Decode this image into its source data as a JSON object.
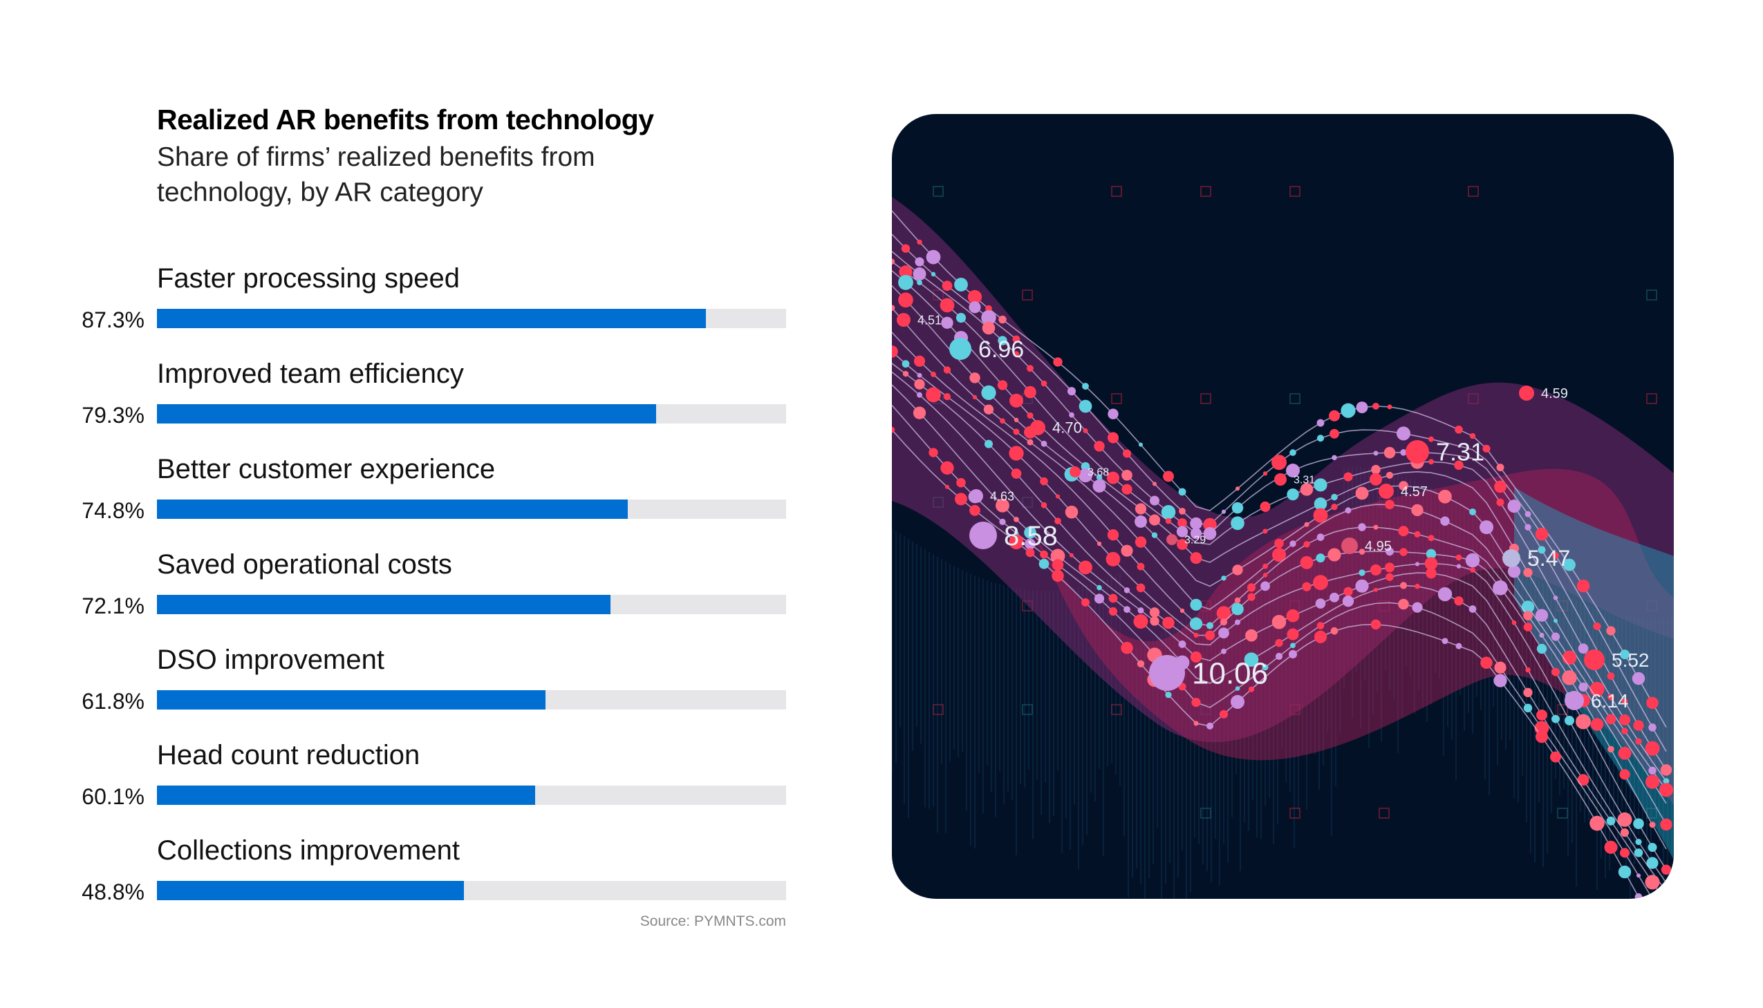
{
  "chart_data": {
    "type": "bar",
    "orientation": "horizontal",
    "title": "Realized AR benefits from technology",
    "subtitle": "Share of firms’ realized benefits from technology, by AR category",
    "categories": [
      "Faster processing speed",
      "Improved team efficiency",
      "Better customer experience",
      "Saved operational costs",
      "DSO improvement",
      "Head count reduction",
      "Collections improvement"
    ],
    "values": [
      87.3,
      79.3,
      74.8,
      72.1,
      61.8,
      60.1,
      48.8
    ],
    "value_labels": [
      "87.3%",
      "79.3%",
      "74.8%",
      "72.1%",
      "61.8%",
      "60.1%",
      "48.8%"
    ],
    "xlim": [
      0,
      100
    ],
    "unit": "%",
    "grid": false,
    "source": "Source: PYMNTS.com",
    "colors": {
      "bar": "#006fd1",
      "track": "#e6e6e8"
    }
  },
  "illustration": {
    "background": "#031127",
    "labels": [
      "6.96",
      "8.58",
      "10.06",
      "7.31",
      "5.47",
      "5.52",
      "6.14",
      "4.70",
      "4.59",
      "4.57",
      "4.95",
      "3.68",
      "4.63",
      "3.31",
      "3.29",
      "4.51"
    ]
  }
}
